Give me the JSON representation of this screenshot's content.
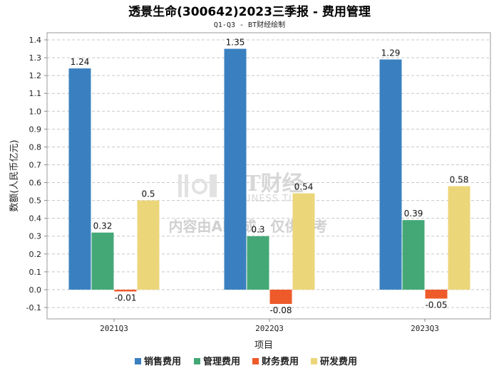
{
  "chart_data": {
    "type": "bar",
    "title": "透景生命(300642)2023三季报 - 费用管理",
    "subtitle": "Q1-Q3 - BT财经绘制",
    "xlabel": "项目",
    "ylabel": "数额(人民币亿元)",
    "categories": [
      "2021Q3",
      "2022Q3",
      "2023Q3"
    ],
    "ylim": [
      -0.1,
      1.4
    ],
    "yticks": [
      -0.1,
      0.0,
      0.1,
      0.2,
      0.3,
      0.4,
      0.5,
      0.6,
      0.7,
      0.8,
      0.9,
      1.0,
      1.1,
      1.2,
      1.3,
      1.4
    ],
    "ytick_labels": [
      "-0.1",
      "0.0",
      "0.1",
      "0.2",
      "0.3",
      "0.4",
      "0.5",
      "0.6",
      "0.7",
      "0.8",
      "0.9",
      "1.0",
      "1.1",
      "1.2",
      "1.3",
      "1.4"
    ],
    "grid": true,
    "legend_position": "bottom",
    "series": [
      {
        "name": "销售费用",
        "color": "#3a80c0",
        "values": [
          1.24,
          1.35,
          1.29
        ],
        "labels": [
          "1.24",
          "1.35",
          "1.29"
        ]
      },
      {
        "name": "管理费用",
        "color": "#44a876",
        "values": [
          0.32,
          0.3,
          0.39
        ],
        "labels": [
          "0.32",
          "0.3",
          "0.39"
        ]
      },
      {
        "name": "财务费用",
        "color": "#ee5a2a",
        "values": [
          -0.01,
          -0.08,
          -0.05
        ],
        "labels": [
          "-0.01",
          "-0.08",
          "-0.05"
        ]
      },
      {
        "name": "研发费用",
        "color": "#ecd67a",
        "values": [
          0.5,
          0.54,
          0.58
        ],
        "labels": [
          "0.5",
          "0.54",
          "0.58"
        ]
      }
    ]
  },
  "watermark": {
    "brand": "BT财经",
    "brand_en": "BUSINESS TIMES",
    "notice": "内容由AI生成，仅供参考"
  }
}
